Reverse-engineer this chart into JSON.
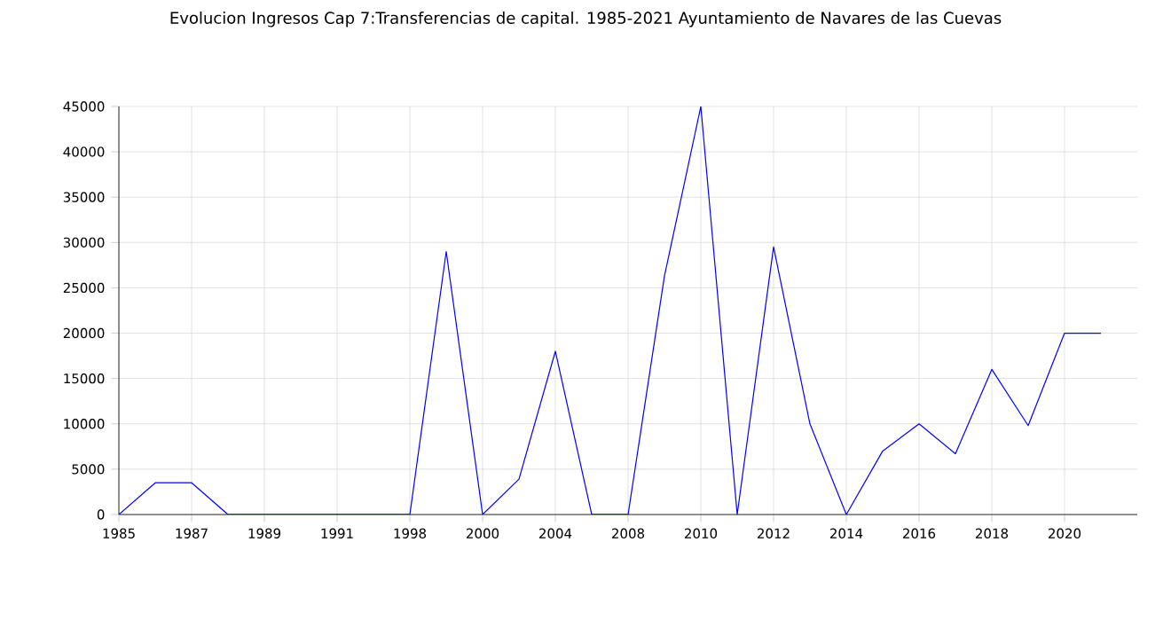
{
  "chart_data": {
    "type": "line",
    "title": "Evolucion Ingresos Cap 7:Transferencias de capital. 1985-2021 Ayuntamiento de Navares de las Cuevas",
    "categories": [
      "1985",
      null,
      "1987",
      null,
      "1989",
      null,
      "1991",
      null,
      "1998",
      null,
      "2000",
      null,
      "2004",
      null,
      "2008",
      null,
      "2010",
      null,
      "2012",
      null,
      "2014",
      null,
      "2016",
      null,
      "2018",
      null,
      "2020",
      null
    ],
    "series": [
      {
        "color": "#0000ff",
        "values": [
          0,
          3500,
          3500,
          0,
          0,
          0,
          0,
          0,
          0,
          29000,
          0,
          3900,
          18000,
          0,
          0,
          26300,
          45000,
          0,
          29500,
          10000,
          0,
          7000,
          10000,
          6700,
          16000,
          9800,
          20000,
          20000
        ]
      }
    ],
    "ylim": [
      0,
      45000
    ],
    "yticks": [
      0,
      5000,
      10000,
      15000,
      20000,
      25000,
      30000,
      35000,
      40000,
      45000
    ],
    "grid": true,
    "marker": "none",
    "line_style": "solid"
  }
}
